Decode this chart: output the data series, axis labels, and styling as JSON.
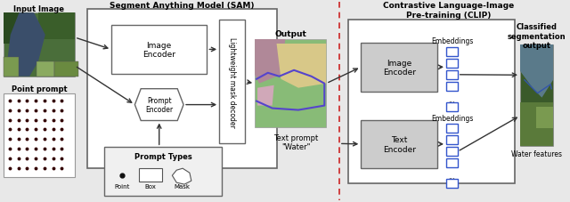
{
  "title_sam": "Segment Anything Model (SAM)",
  "title_clip": "Contrastive Language-Image\nPre-training (CLIP)",
  "label_input": "Input Image",
  "label_point": "Point prompt",
  "label_output": "Output",
  "label_text_prompt": "Text prompt\n\"Water\"",
  "label_classified": "Classified\nsegmentation\noutput",
  "label_water": "Water features",
  "label_image_encoder1": "Image\nEncoder",
  "label_prompt_encoder": "Prompt\nEncoder",
  "label_lmd": "Lightweight mask decoder",
  "label_prompt_types": "Prompt Types",
  "label_point_type": "Point",
  "label_box_type": "Box",
  "label_mask_type": "Mask",
  "label_image_encoder2": "Image\nEncoder",
  "label_text_encoder": "Text\nEncoder",
  "label_embeddings1": "Embeddings",
  "label_embeddings2": "Embeddings",
  "fig_bg": "#e8e8e8",
  "box_fc": "#f0f0f0",
  "box_ec": "#666666",
  "white": "#ffffff",
  "arrow_c": "#333333",
  "red_dash": "#cc2222",
  "blue_emb": "#3355cc",
  "gray_encoder": "#cccccc"
}
